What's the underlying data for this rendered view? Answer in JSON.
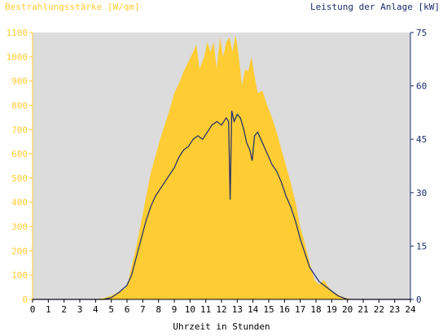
{
  "chart_data": {
    "type": "area",
    "xlabel": "Uhrzeit in Stunden",
    "ylabel_left": "Bestrahlungsstärke [W/qm]",
    "ylabel_right": "Leistung der Anlage [kW]",
    "xlim": [
      0,
      24
    ],
    "ylim_left": [
      0,
      1100
    ],
    "ylim_right": [
      0,
      75
    ],
    "x_ticks": [
      0,
      1,
      2,
      3,
      4,
      5,
      6,
      7,
      8,
      9,
      10,
      11,
      12,
      13,
      14,
      15,
      16,
      17,
      18,
      19,
      20,
      21,
      22,
      23,
      24
    ],
    "y_left_ticks": [
      0,
      100,
      200,
      300,
      400,
      500,
      600,
      700,
      800,
      900,
      1000,
      1100
    ],
    "y_right_ticks": [
      0,
      15,
      30,
      45,
      60,
      75
    ],
    "grid": false,
    "colors": {
      "irradiance": "#ffcc33",
      "power": "#1a2a6c",
      "plot_background": "#dcdcdc",
      "left_axis_text": "#ffcc33",
      "right_axis_text": "#1a2a6c"
    },
    "series": [
      {
        "axis": "left",
        "style": "area",
        "x": [
          0,
          4,
          4.5,
          5,
          5.3,
          5.6,
          5.9,
          6.1,
          6.3,
          6.6,
          6.9,
          7.2,
          7.5,
          7.8,
          8.1,
          8.4,
          8.7,
          9.0,
          9.3,
          9.6,
          9.9,
          10.2,
          10.4,
          10.6,
          10.9,
          11.1,
          11.3,
          11.5,
          11.7,
          11.9,
          12.1,
          12.3,
          12.5,
          12.6,
          12.7,
          12.9,
          13.1,
          13.3,
          13.5,
          13.7,
          13.9,
          14.1,
          14.3,
          14.6,
          14.9,
          15.2,
          15.5,
          15.8,
          16.1,
          16.4,
          16.7,
          17.0,
          17.3,
          17.6,
          17.9,
          18.2,
          18.5,
          18.8,
          19.1,
          19.4,
          19.7,
          20.0,
          20.3,
          20.5,
          24
        ],
        "y": [
          0,
          0,
          5,
          15,
          25,
          35,
          45,
          80,
          140,
          220,
          320,
          420,
          520,
          590,
          660,
          720,
          780,
          850,
          890,
          940,
          980,
          1020,
          1050,
          950,
          1000,
          1060,
          1020,
          1060,
          950,
          1080,
          1000,
          1060,
          1080,
          1050,
          1020,
          1090,
          1000,
          880,
          950,
          940,
          1000,
          920,
          850,
          860,
          800,
          750,
          690,
          620,
          550,
          480,
          400,
          300,
          230,
          150,
          80,
          60,
          80,
          50,
          30,
          20,
          10,
          5,
          0,
          0,
          0
        ]
      },
      {
        "axis": "right",
        "style": "line",
        "x": [
          0,
          4.5,
          5,
          5.5,
          6,
          6.3,
          6.6,
          6.9,
          7.2,
          7.5,
          7.8,
          8.1,
          8.4,
          8.7,
          9.0,
          9.3,
          9.6,
          9.9,
          10.2,
          10.5,
          10.8,
          11.1,
          11.4,
          11.7,
          12.0,
          12.3,
          12.45,
          12.55,
          12.65,
          12.8,
          13.0,
          13.2,
          13.4,
          13.6,
          13.8,
          13.95,
          14.1,
          14.3,
          14.6,
          14.9,
          15.2,
          15.5,
          15.8,
          16.1,
          16.4,
          16.7,
          17.0,
          17.3,
          17.6,
          17.9,
          18.2,
          18.5,
          18.8,
          19.1,
          19.4,
          19.7,
          20.0,
          20.3,
          20.6,
          24
        ],
        "y": [
          0,
          0,
          0.5,
          2,
          4,
          7,
          12,
          17,
          22,
          26,
          29,
          31,
          33,
          35,
          37,
          40,
          42,
          43,
          45,
          46,
          45,
          47,
          49,
          50,
          49,
          51,
          50,
          28,
          53,
          50,
          52,
          51,
          48,
          44,
          42,
          39,
          46,
          47,
          44,
          41,
          38,
          36,
          33,
          29,
          26,
          22,
          17,
          13,
          9,
          7,
          5,
          4,
          3,
          2,
          1,
          0.5,
          0,
          0,
          0,
          0
        ]
      }
    ]
  }
}
